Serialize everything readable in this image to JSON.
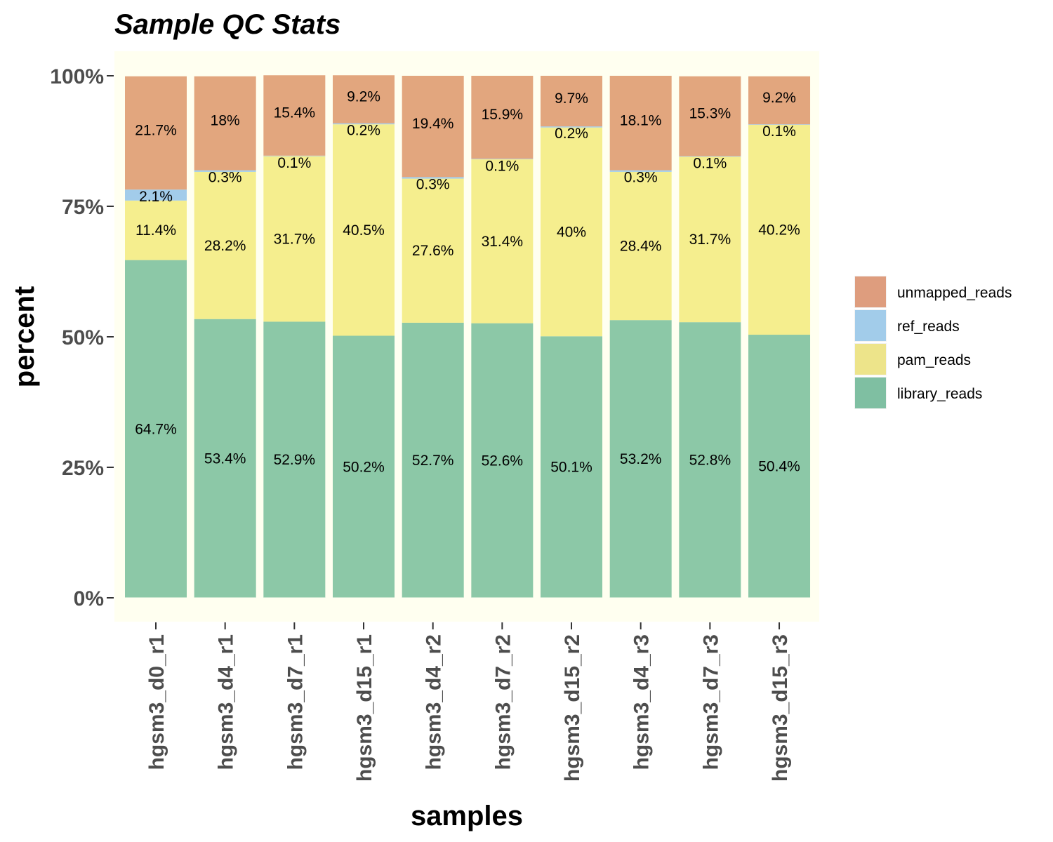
{
  "chart_data": {
    "type": "bar",
    "stacked": true,
    "title": "Sample QC Stats",
    "xlabel": "samples",
    "ylabel": "percent",
    "ylim": [
      0,
      100
    ],
    "y_ticks": [
      "0%",
      "25%",
      "50%",
      "75%",
      "100%"
    ],
    "y_tick_values": [
      0,
      25,
      50,
      75,
      100
    ],
    "panel_background": "#FFFFF0",
    "grid": false,
    "legend_position": "right",
    "categories": [
      "hgsm3_d0_r1",
      "hgsm3_d4_r1",
      "hgsm3_d7_r1",
      "hgsm3_d15_r1",
      "hgsm3_d4_r2",
      "hgsm3_d7_r2",
      "hgsm3_d15_r2",
      "hgsm3_d4_r3",
      "hgsm3_d7_r3",
      "hgsm3_d15_r3"
    ],
    "series": [
      {
        "name": "library_reads",
        "color": "#8CC8A7",
        "values": [
          64.7,
          53.4,
          52.9,
          50.2,
          52.7,
          52.6,
          50.1,
          53.2,
          52.8,
          50.4
        ],
        "labels": [
          "64.7%",
          "53.4%",
          "52.9%",
          "50.2%",
          "52.7%",
          "52.6%",
          "50.1%",
          "53.2%",
          "52.8%",
          "50.4%"
        ]
      },
      {
        "name": "pam_reads",
        "color": "#F5EE8E",
        "values": [
          11.4,
          28.2,
          31.7,
          40.5,
          27.6,
          31.4,
          40.0,
          28.4,
          31.7,
          40.2
        ],
        "labels": [
          "11.4%",
          "28.2%",
          "31.7%",
          "40.5%",
          "27.6%",
          "31.4%",
          "40%",
          "28.4%",
          "31.7%",
          "40.2%"
        ]
      },
      {
        "name": "ref_reads",
        "color": "#A2CCEA",
        "values": [
          2.1,
          0.3,
          0.1,
          0.2,
          0.3,
          0.1,
          0.2,
          0.3,
          0.1,
          0.1
        ],
        "labels": [
          "2.1%",
          "0.3%",
          "0.1%",
          "0.2%",
          "0.3%",
          "0.1%",
          "0.2%",
          "0.3%",
          "0.1%",
          "0.1%"
        ]
      },
      {
        "name": "unmapped_reads",
        "color": "#E2A67E",
        "values": [
          21.7,
          18.0,
          15.4,
          9.2,
          19.4,
          15.9,
          9.7,
          18.1,
          15.3,
          9.2
        ],
        "labels": [
          "21.7%",
          "18%",
          "15.4%",
          "9.2%",
          "19.4%",
          "15.9%",
          "9.7%",
          "18.1%",
          "15.3%",
          "9.2%"
        ]
      }
    ],
    "legend": [
      {
        "name": "unmapped_reads",
        "color": "#DE9D7E"
      },
      {
        "name": "ref_reads",
        "color": "#A2CCEA"
      },
      {
        "name": "pam_reads",
        "color": "#EDE48A"
      },
      {
        "name": "library_reads",
        "color": "#7FBFA2"
      }
    ]
  }
}
